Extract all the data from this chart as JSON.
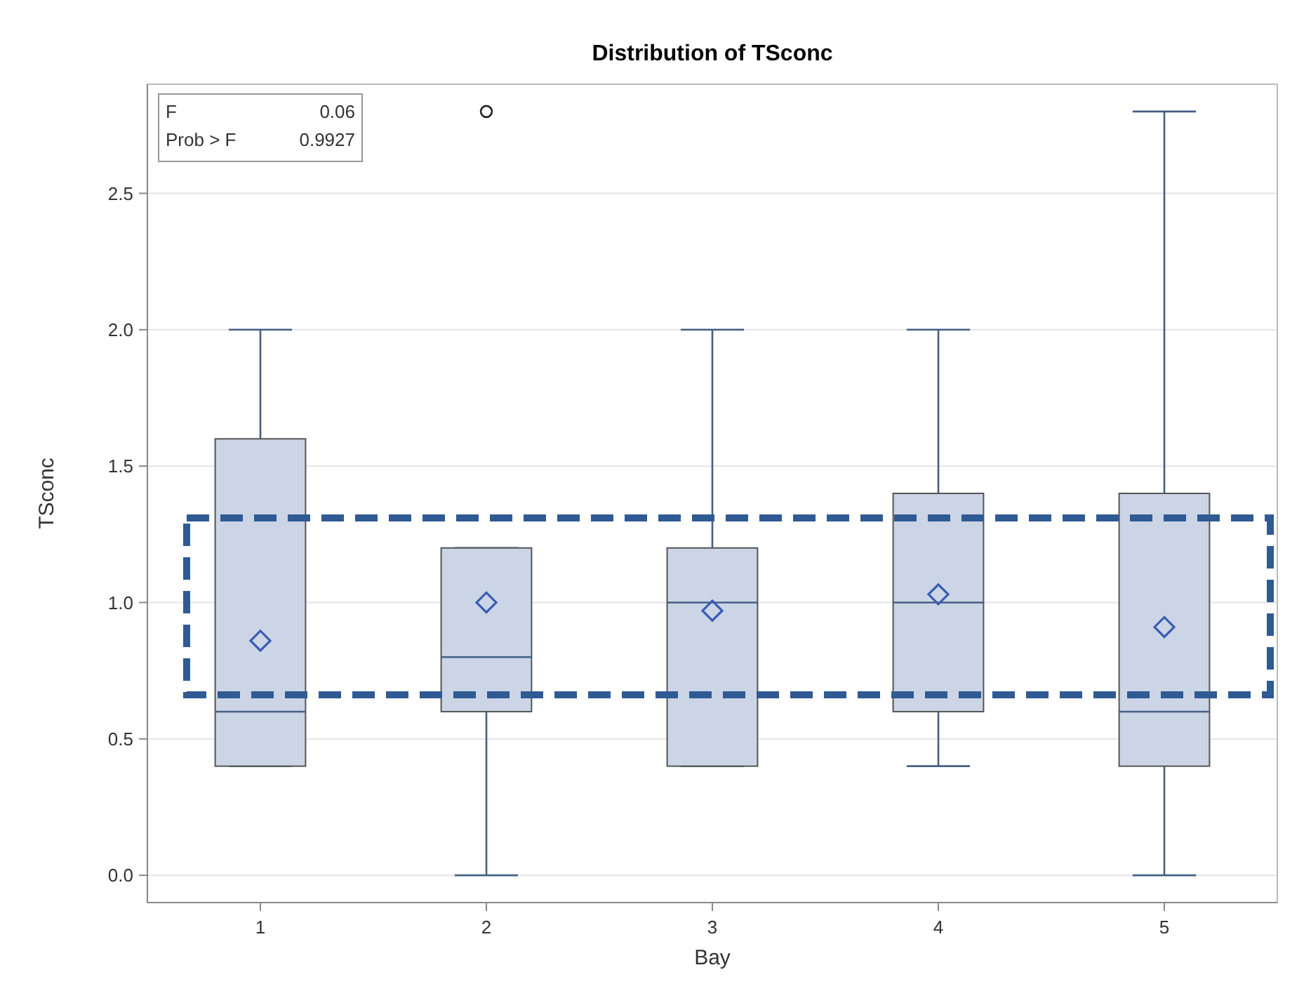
{
  "chart_data": {
    "type": "box",
    "title": "Distribution of TSconc",
    "xlabel": "Bay",
    "ylabel": "TSconc",
    "categories": [
      "1",
      "2",
      "3",
      "4",
      "5"
    ],
    "boxes": [
      {
        "low": 0.4,
        "q1": 0.4,
        "median": 0.6,
        "q3": 1.6,
        "high": 2.0,
        "mean": 0.86
      },
      {
        "low": 0.0,
        "q1": 0.6,
        "median": 0.8,
        "q3": 1.2,
        "high": 1.2,
        "mean": 1.0,
        "outliers": [
          2.8
        ]
      },
      {
        "low": 0.4,
        "q1": 0.4,
        "median": 1.0,
        "q3": 1.2,
        "high": 2.0,
        "mean": 0.97
      },
      {
        "low": 0.4,
        "q1": 0.6,
        "median": 1.0,
        "q3": 1.4,
        "high": 2.0,
        "mean": 1.03
      },
      {
        "low": 0.0,
        "q1": 0.4,
        "median": 0.6,
        "q3": 1.4,
        "high": 2.8,
        "mean": 0.91
      }
    ],
    "color": "#cbd5e6",
    "ylim": [
      -0.1,
      2.9
    ],
    "yticks": [
      {
        "value": 0,
        "label": "0.0"
      },
      0.5,
      {
        "value": 1,
        "label": "1.0"
      },
      1.5,
      {
        "value": 2,
        "label": "2.0"
      },
      2.5
    ],
    "grid": "y",
    "marker": "diamond",
    "annotations": [
      "F 0.06",
      "Prob > F 0.9927"
    ]
  }
}
